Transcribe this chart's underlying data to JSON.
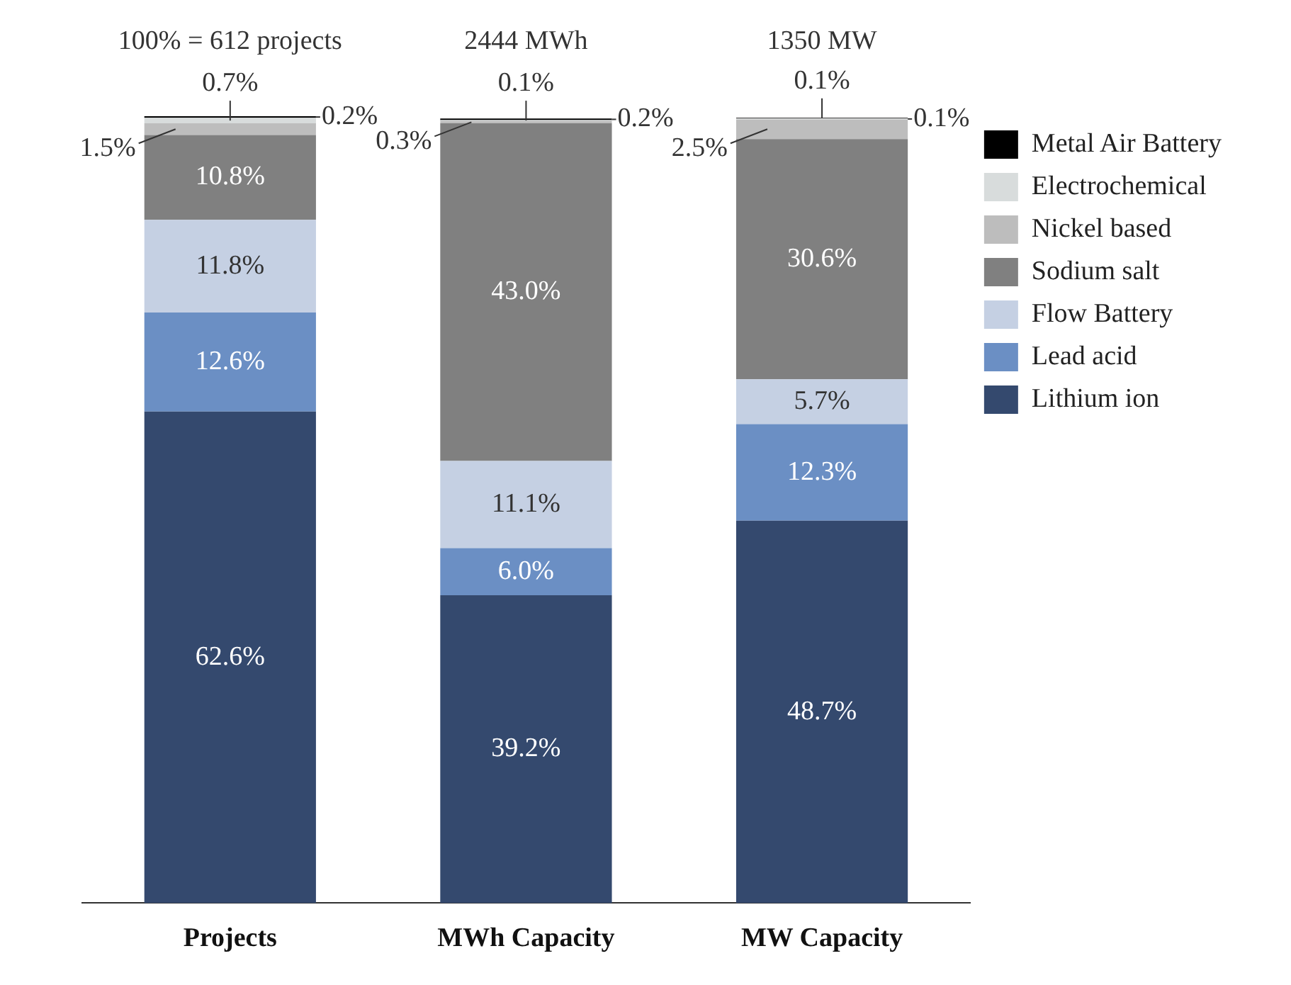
{
  "chart_data": {
    "type": "bar",
    "stacked": true,
    "categories": [
      "Projects",
      "MWh Capacity",
      "MW Capacity"
    ],
    "series": [
      {
        "name": "Lithium ion",
        "color": "#34496e",
        "values": [
          62.6,
          39.2,
          48.7
        ],
        "value_labels": [
          "62.6%",
          "39.2%",
          "48.7%"
        ]
      },
      {
        "name": "Lead acid",
        "color": "#6b8fc4",
        "values": [
          12.6,
          6.0,
          12.3
        ],
        "value_labels": [
          "12.6%",
          "6.0%",
          "12.3%"
        ]
      },
      {
        "name": "Flow Battery",
        "color": "#c5d0e3",
        "values": [
          11.8,
          11.1,
          5.7
        ],
        "value_labels": [
          "11.8%",
          "11.1%",
          "5.7%"
        ]
      },
      {
        "name": "Sodium salt",
        "color": "#808080",
        "values": [
          10.8,
          43.0,
          30.6
        ],
        "value_labels": [
          "10.8%",
          "43.0%",
          "30.6%"
        ]
      },
      {
        "name": "Nickel based",
        "color": "#bdbdbd",
        "values": [
          1.5,
          0.3,
          2.5
        ],
        "value_labels": [
          "1.5%",
          "0.3%",
          "2.5%"
        ]
      },
      {
        "name": "Electrochemical",
        "color": "#d8dcdc",
        "values": [
          0.7,
          0.1,
          0.1
        ],
        "value_labels": [
          "0.7%",
          "0.1%",
          "0.1%"
        ]
      },
      {
        "name": "Metal Air Battery",
        "color": "#000000",
        "values": [
          0.2,
          0.2,
          0.1
        ],
        "value_labels": [
          "0.2%",
          "0.2%",
          "0.1%"
        ]
      }
    ],
    "legend": "top right",
    "grid": false,
    "annotations": [
      {
        "text": "100% = 612 projects",
        "x": "Projects",
        "y": 100
      },
      {
        "text": "2444 MWh",
        "x": "MWh Capacity",
        "y": 100
      },
      {
        "text": "1350 MW",
        "x": "MW Capacity",
        "y": 100
      }
    ]
  }
}
